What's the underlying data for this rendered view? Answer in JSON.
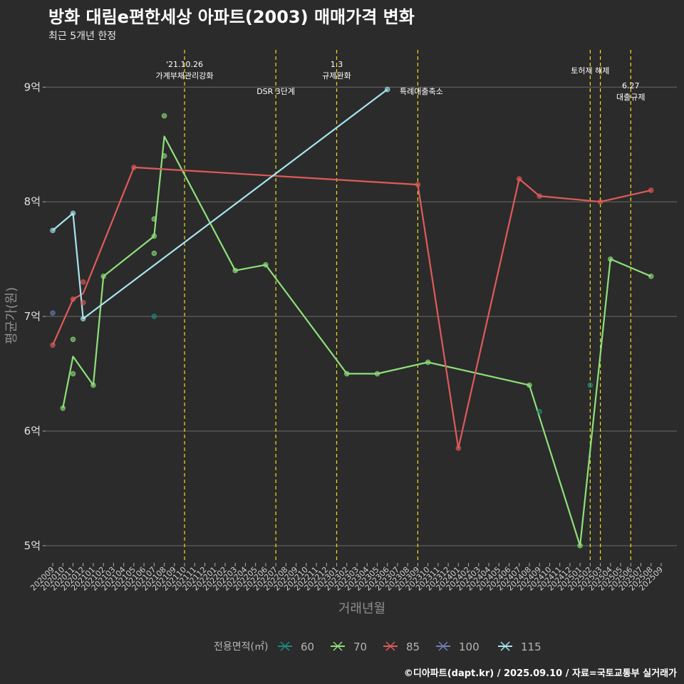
{
  "title": "방화 대림e편한세상 아파트(2003) 매매가격 변화",
  "subtitle": "최근 5개년 한정",
  "caption": "©디아파트(dapt.kr) / 2025.09.10 / 자료=국토교통부 실거래가",
  "chart_data": {
    "type": "line",
    "xlabel": "거래년월",
    "ylabel": "평균가(원)",
    "x_categories": [
      "202009",
      "202010",
      "202011",
      "202012",
      "202101",
      "202102",
      "202103",
      "202104",
      "202105",
      "202106",
      "202107",
      "202108",
      "202109",
      "202110",
      "202111",
      "202112",
      "202201",
      "202202",
      "202203",
      "202204",
      "202205",
      "202206",
      "202207",
      "202208",
      "202209",
      "202210",
      "202211",
      "202212",
      "202301",
      "202302",
      "202303",
      "202304",
      "202305",
      "202306",
      "202307",
      "202308",
      "202309",
      "202310",
      "202311",
      "202312",
      "202401",
      "202402",
      "202403",
      "202404",
      "202405",
      "202406",
      "202407",
      "202408",
      "202409",
      "202410",
      "202411",
      "202412",
      "202501",
      "202502",
      "202503",
      "202504",
      "202505",
      "202506",
      "202507",
      "202508",
      "202509"
    ],
    "ylim": [
      4.85,
      9.35
    ],
    "y_ticks": [
      5,
      6,
      7,
      8,
      9
    ],
    "y_tick_labels": [
      "5억",
      "6억",
      "7억",
      "8억",
      "9억"
    ],
    "grid": true,
    "legend": {
      "title": "전용면적(㎡)",
      "position": "bottom"
    },
    "series": [
      {
        "name": "60",
        "color": "#1f8a80",
        "line": [],
        "points": [
          [
            "202107",
            7.0
          ],
          [
            "202409",
            6.17
          ],
          [
            "202502",
            6.4
          ]
        ]
      },
      {
        "name": "70",
        "color": "#8ee07a",
        "line": [
          [
            "202010",
            6.2
          ],
          [
            "202011",
            6.65
          ],
          [
            "202101",
            6.4
          ],
          [
            "202102",
            7.35
          ],
          [
            "202107",
            7.7
          ],
          [
            "202108",
            8.57
          ],
          [
            "202203",
            7.4
          ],
          [
            "202206",
            7.45
          ],
          [
            "202302",
            6.5
          ],
          [
            "202305",
            6.5
          ],
          [
            "202310",
            6.6
          ],
          [
            "202408",
            6.4
          ],
          [
            "202501",
            5.0
          ],
          [
            "202504",
            7.5
          ],
          [
            "202508",
            7.35
          ]
        ],
        "points": [
          [
            "202010",
            6.2
          ],
          [
            "202011",
            6.8
          ],
          [
            "202011",
            6.5
          ],
          [
            "202101",
            6.4
          ],
          [
            "202102",
            7.35
          ],
          [
            "202107",
            7.85
          ],
          [
            "202107",
            7.55
          ],
          [
            "202107",
            7.7
          ],
          [
            "202108",
            8.75
          ],
          [
            "202108",
            8.4
          ],
          [
            "202203",
            7.4
          ],
          [
            "202206",
            7.45
          ],
          [
            "202302",
            6.5
          ],
          [
            "202305",
            6.5
          ],
          [
            "202310",
            6.6
          ],
          [
            "202408",
            6.4
          ],
          [
            "202501",
            5.0
          ],
          [
            "202504",
            7.5
          ],
          [
            "202508",
            7.35
          ]
        ]
      },
      {
        "name": "85",
        "color": "#e05a5a",
        "line": [
          [
            "202009",
            6.75
          ],
          [
            "202011",
            7.15
          ],
          [
            "202012",
            7.2
          ],
          [
            "202105",
            8.3
          ],
          [
            "202309",
            8.15
          ],
          [
            "202401",
            5.85
          ],
          [
            "202407",
            8.2
          ],
          [
            "202409",
            8.05
          ],
          [
            "202503",
            8.0
          ],
          [
            "202508",
            8.1
          ]
        ],
        "points": [
          [
            "202009",
            6.75
          ],
          [
            "202011",
            7.15
          ],
          [
            "202012",
            7.3
          ],
          [
            "202012",
            7.12
          ],
          [
            "202105",
            8.3
          ],
          [
            "202309",
            8.15
          ],
          [
            "202401",
            5.85
          ],
          [
            "202407",
            8.2
          ],
          [
            "202409",
            8.05
          ],
          [
            "202503",
            8.0
          ],
          [
            "202508",
            8.1
          ]
        ]
      },
      {
        "name": "100",
        "color": "#6f7fb8",
        "line": [],
        "points": [
          [
            "202009",
            7.03
          ]
        ]
      },
      {
        "name": "115",
        "color": "#a8e4ec",
        "line": [
          [
            "202009",
            7.75
          ],
          [
            "202011",
            7.9
          ],
          [
            "202012",
            6.98
          ],
          [
            "202306",
            8.98
          ]
        ],
        "points": [
          [
            "202009",
            7.75
          ],
          [
            "202011",
            7.9
          ],
          [
            "202012",
            6.98
          ],
          [
            "202306",
            8.98
          ]
        ]
      }
    ],
    "events": [
      {
        "month": "202110",
        "label": [
          "'21.10.26",
          "가계부채관리강화"
        ],
        "tier": "top"
      },
      {
        "month": "202207",
        "label": [
          "DSR 3단계"
        ],
        "tier": "mid"
      },
      {
        "month": "202301",
        "label": [
          "1.3",
          "규제완화"
        ],
        "tier": "top"
      },
      {
        "month": "202309",
        "label": [
          "특례대출축소"
        ],
        "tier": "side"
      },
      {
        "month": "202502",
        "label": [
          "토허제 해제"
        ],
        "tier": "top2"
      },
      {
        "month": "202503",
        "label": [],
        "tier": "none"
      },
      {
        "month": "202506",
        "label": [
          "6.27",
          "대출규제"
        ],
        "tier": "low"
      }
    ]
  }
}
